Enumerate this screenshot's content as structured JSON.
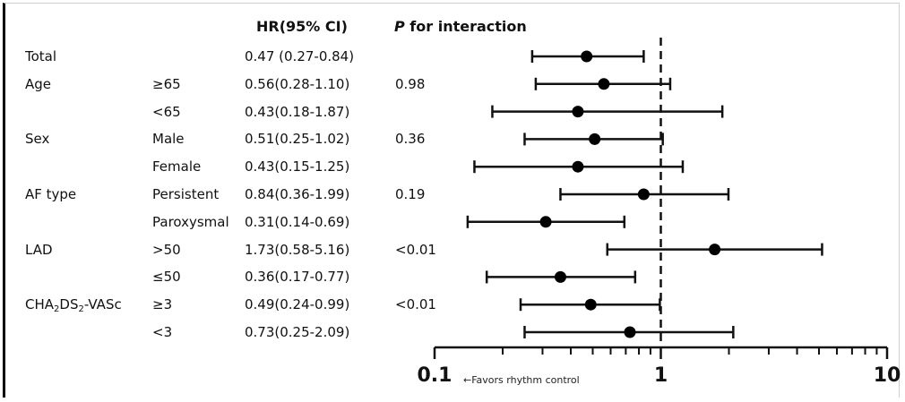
{
  "headers": {
    "hr": "HR(95% CI)",
    "p_italic": "P",
    "p_rest": " for interaction"
  },
  "rows": [
    {
      "group": "Total",
      "sub": "",
      "hr": "0.47 (0.27-0.84)",
      "p": ""
    },
    {
      "group": "Age",
      "sub": "≥65",
      "hr": "0.56(0.28-1.10)",
      "p": "0.98"
    },
    {
      "group": "",
      "sub": "<65",
      "hr": "0.43(0.18-1.87)",
      "p": ""
    },
    {
      "group": "Sex",
      "sub": "Male",
      "hr": "0.51(0.25-1.02)",
      "p": "0.36"
    },
    {
      "group": "",
      "sub": "Female",
      "hr": "0.43(0.15-1.25)",
      "p": ""
    },
    {
      "group": "AF type",
      "sub": "Persistent",
      "hr": "0.84(0.36-1.99)",
      "p": "0.19"
    },
    {
      "group": "",
      "sub": "Paroxysmal",
      "hr": "0.31(0.14-0.69)",
      "p": ""
    },
    {
      "group": "LAD",
      "sub": ">50",
      "hr": "1.73(0.58-5.16)",
      "p": "<0.01"
    },
    {
      "group": "",
      "sub": "≤50",
      "hr": "0.36(0.17-0.77)",
      "p": ""
    },
    {
      "group": "CHA2DS2-VASc",
      "sub": "≥3",
      "hr": "0.49(0.24-0.99)",
      "p": "<0.01"
    },
    {
      "group": "",
      "sub": "<3",
      "hr": "0.73(0.25-2.09)",
      "p": ""
    }
  ],
  "chart_data": {
    "type": "forest",
    "scale": "log",
    "xlim": [
      0.1,
      10
    ],
    "reference_line": 1,
    "ticks": [
      {
        "value": 0.1,
        "label": "0.1"
      },
      {
        "value": 1,
        "label": "1"
      },
      {
        "value": 10,
        "label": "10"
      }
    ],
    "annotation": "←Favors rhythm control",
    "series": [
      {
        "label": "Total",
        "hr": 0.47,
        "lo": 0.27,
        "hi": 0.84
      },
      {
        "label": "Age ≥65",
        "hr": 0.56,
        "lo": 0.28,
        "hi": 1.1
      },
      {
        "label": "Age <65",
        "hr": 0.43,
        "lo": 0.18,
        "hi": 1.87
      },
      {
        "label": "Sex Male",
        "hr": 0.51,
        "lo": 0.25,
        "hi": 1.02
      },
      {
        "label": "Sex Female",
        "hr": 0.43,
        "lo": 0.15,
        "hi": 1.25
      },
      {
        "label": "AF type Persistent",
        "hr": 0.84,
        "lo": 0.36,
        "hi": 1.99
      },
      {
        "label": "AF type Paroxysmal",
        "hr": 0.31,
        "lo": 0.14,
        "hi": 0.69
      },
      {
        "label": "LAD >50",
        "hr": 1.73,
        "lo": 0.58,
        "hi": 5.16
      },
      {
        "label": "LAD ≤50",
        "hr": 0.36,
        "lo": 0.17,
        "hi": 0.77
      },
      {
        "label": "CHA2DS2-VASc ≥3",
        "hr": 0.49,
        "lo": 0.24,
        "hi": 0.99
      },
      {
        "label": "CHA2DS2-VASc <3",
        "hr": 0.73,
        "lo": 0.25,
        "hi": 2.09
      }
    ]
  }
}
